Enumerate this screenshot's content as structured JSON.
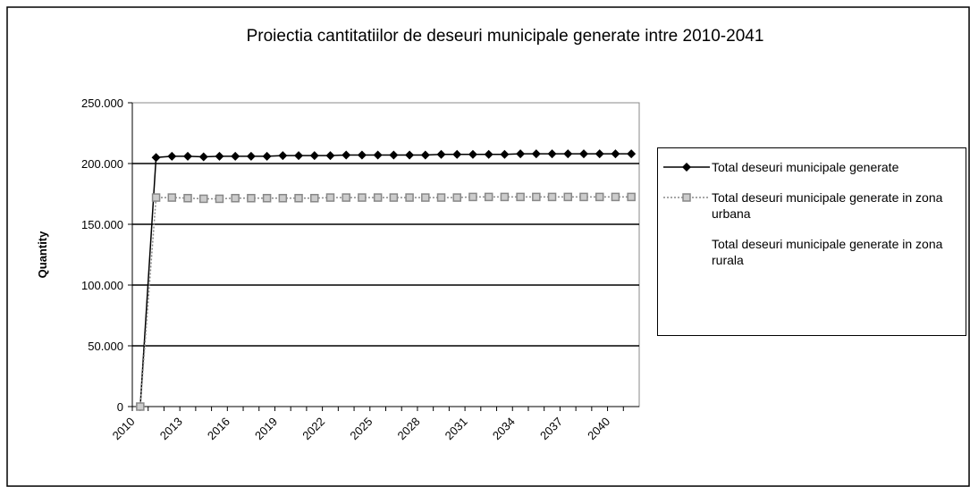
{
  "chart_data": {
    "type": "line",
    "title": "Proiectia cantitatiilor de deseuri municipale generate intre 2010-2041",
    "y_label": "Quantity",
    "categories": [
      "2010",
      null,
      null,
      "2013",
      null,
      null,
      "2016",
      null,
      null,
      "2019",
      null,
      null,
      "2022",
      null,
      null,
      "2025",
      null,
      null,
      "2028",
      null,
      null,
      "2031",
      null,
      null,
      "2034",
      null,
      null,
      "2037",
      null,
      null,
      "2040",
      null
    ],
    "series": [
      {
        "name": "Total deseuri municipale generate",
        "color": "#000000",
        "marker": "diamond",
        "values": [
          0,
          205000,
          206000,
          206000,
          205500,
          206000,
          206000,
          206000,
          206000,
          206500,
          206500,
          206500,
          206500,
          207000,
          207000,
          207000,
          207000,
          207000,
          207000,
          207500,
          207500,
          207500,
          207500,
          207500,
          208000,
          208000,
          208000,
          208000,
          208000,
          208000,
          208000,
          208000
        ]
      },
      {
        "name": "Total deseuri municipale generate in zona urbana",
        "color": "#888888",
        "marker": "square",
        "values": [
          0,
          172000,
          172000,
          171500,
          171000,
          171000,
          171500,
          171500,
          171500,
          171500,
          171500,
          171500,
          172000,
          172000,
          172000,
          172000,
          172000,
          172000,
          172000,
          172000,
          172000,
          172500,
          172500,
          172500,
          172500,
          172500,
          172500,
          172500,
          172500,
          172500,
          172500,
          172500
        ]
      },
      {
        "name": "Total deseuri municipale generate in zona rurala",
        "color": "#ffffff",
        "marker": "none",
        "values": [
          null,
          null,
          null,
          null,
          null,
          null,
          null,
          null,
          null,
          null,
          null,
          null,
          null,
          null,
          null,
          null,
          null,
          null,
          null,
          null,
          null,
          null,
          null,
          null,
          null,
          null,
          null,
          null,
          null,
          null,
          null,
          null
        ]
      }
    ],
    "ylim": [
      0,
      250000
    ],
    "yticks": [
      0,
      {
        "value": 50000,
        "label": "50.000"
      },
      {
        "value": 100000,
        "label": "100.000"
      },
      {
        "value": 150000,
        "label": "150.000"
      },
      {
        "value": 200000,
        "label": "200.000"
      },
      {
        "value": 250000,
        "label": "250.000"
      }
    ],
    "grid": true,
    "legend": "right"
  }
}
